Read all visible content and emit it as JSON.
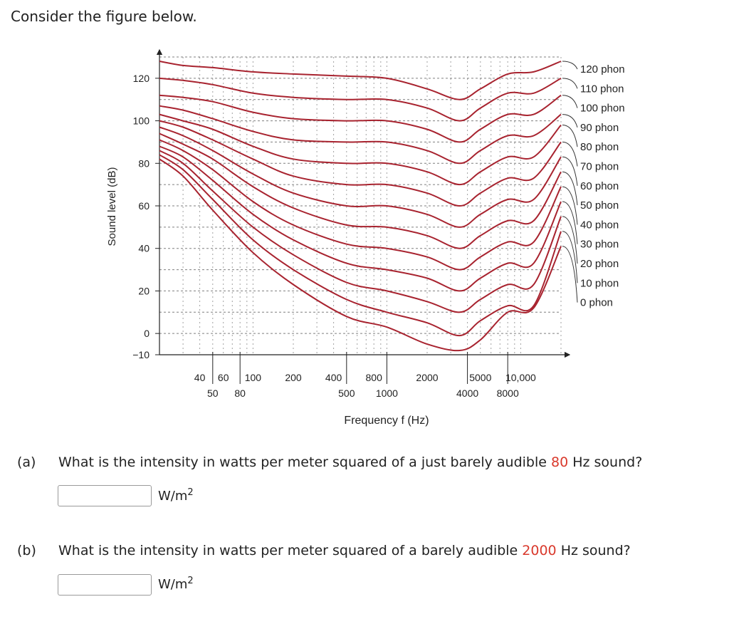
{
  "intro": "Consider the figure below.",
  "questions": [
    {
      "part": "(a)",
      "text_before": "What is the intensity in watts per meter squared of a just barely audible ",
      "highlight": "80",
      "text_after": " Hz sound?",
      "input_value": "",
      "unit_base": "W/m",
      "unit_exp": "2"
    },
    {
      "part": "(b)",
      "text_before": "What is the intensity in watts per meter squared of a barely audible ",
      "highlight": "2000",
      "text_after": " Hz sound?",
      "input_value": "",
      "unit_base": "W/m",
      "unit_exp": "2"
    }
  ],
  "colors": {
    "curve": "#a8232f",
    "highlight": "#d9392c",
    "grid": "#555555"
  },
  "chart_data": {
    "type": "line",
    "xscale": "log",
    "xlabel": "Frequency f (Hz)",
    "ylabel": "Sound level (dB)",
    "xlim": [
      20,
      20000
    ],
    "ylim": [
      -10,
      130
    ],
    "yticks": [
      120,
      100,
      80,
      60,
      40,
      20,
      0,
      -10
    ],
    "xticks_upper": [
      {
        "v": 40,
        "l": "40"
      },
      {
        "v": 60,
        "l": "60"
      },
      {
        "v": 100,
        "l": "100"
      },
      {
        "v": 200,
        "l": "200"
      },
      {
        "v": 400,
        "l": "400"
      },
      {
        "v": 800,
        "l": "800"
      },
      {
        "v": 2000,
        "l": "2000"
      },
      {
        "v": 5000,
        "l": "5000"
      },
      {
        "v": 10000,
        "l": "10,000"
      }
    ],
    "xticks_lower": [
      {
        "v": 50,
        "l": "50"
      },
      {
        "v": 80,
        "l": "80"
      },
      {
        "v": 500,
        "l": "500"
      },
      {
        "v": 1000,
        "l": "1000"
      },
      {
        "v": 4000,
        "l": "4000"
      },
      {
        "v": 8000,
        "l": "8000"
      }
    ],
    "x": [
      20,
      30,
      50,
      100,
      200,
      500,
      1000,
      2000,
      3500,
      5000,
      8000,
      12500,
      20000
    ],
    "series": [
      {
        "name": "120 phon",
        "values": [
          128,
          126,
          125,
          123,
          122,
          121,
          120,
          115,
          110,
          115,
          122,
          123,
          128
        ]
      },
      {
        "name": "110 phon",
        "values": [
          120,
          119,
          117,
          113,
          111,
          110,
          110,
          106,
          100,
          106,
          113,
          113,
          120
        ]
      },
      {
        "name": "100 phon",
        "values": [
          112,
          111,
          109,
          104,
          101,
          100,
          100,
          96,
          90,
          96,
          103,
          103,
          112
        ]
      },
      {
        "name": "90 phon",
        "values": [
          107,
          105,
          101,
          95,
          91,
          90,
          90,
          86,
          80,
          86,
          93,
          93,
          103
        ]
      },
      {
        "name": "80 phon",
        "values": [
          103,
          100,
          96,
          88,
          82,
          80,
          80,
          76,
          70,
          76,
          83,
          83,
          98
        ]
      },
      {
        "name": "70 phon",
        "values": [
          100,
          97,
          91,
          82,
          74,
          70,
          70,
          66,
          60,
          66,
          73,
          73,
          90
        ]
      },
      {
        "name": "60 phon",
        "values": [
          97,
          93,
          86,
          75,
          66,
          60,
          60,
          56,
          50,
          56,
          63,
          63,
          83
        ]
      },
      {
        "name": "50 phon",
        "values": [
          94,
          89,
          82,
          69,
          59,
          51,
          50,
          46,
          40,
          46,
          53,
          53,
          76
        ]
      },
      {
        "name": "40 phon",
        "values": [
          91,
          86,
          77,
          62,
          51,
          42,
          40,
          36,
          30,
          36,
          43,
          43,
          69
        ]
      },
      {
        "name": "30 phon",
        "values": [
          88,
          83,
          72,
          56,
          44,
          33,
          30,
          26,
          20,
          26,
          33,
          33,
          62
        ]
      },
      {
        "name": "20 phon",
        "values": [
          86,
          80,
          67,
          50,
          37,
          24,
          20,
          15,
          10,
          16,
          23,
          23,
          55
        ]
      },
      {
        "name": "10 phon",
        "values": [
          84,
          77,
          63,
          44,
          30,
          16,
          10,
          5,
          -1,
          6,
          13,
          13,
          48
        ]
      },
      {
        "name": "0 phon",
        "values": [
          82,
          74,
          58,
          38,
          23,
          8,
          3,
          -5,
          -8,
          -3,
          10,
          12,
          41
        ]
      }
    ]
  }
}
